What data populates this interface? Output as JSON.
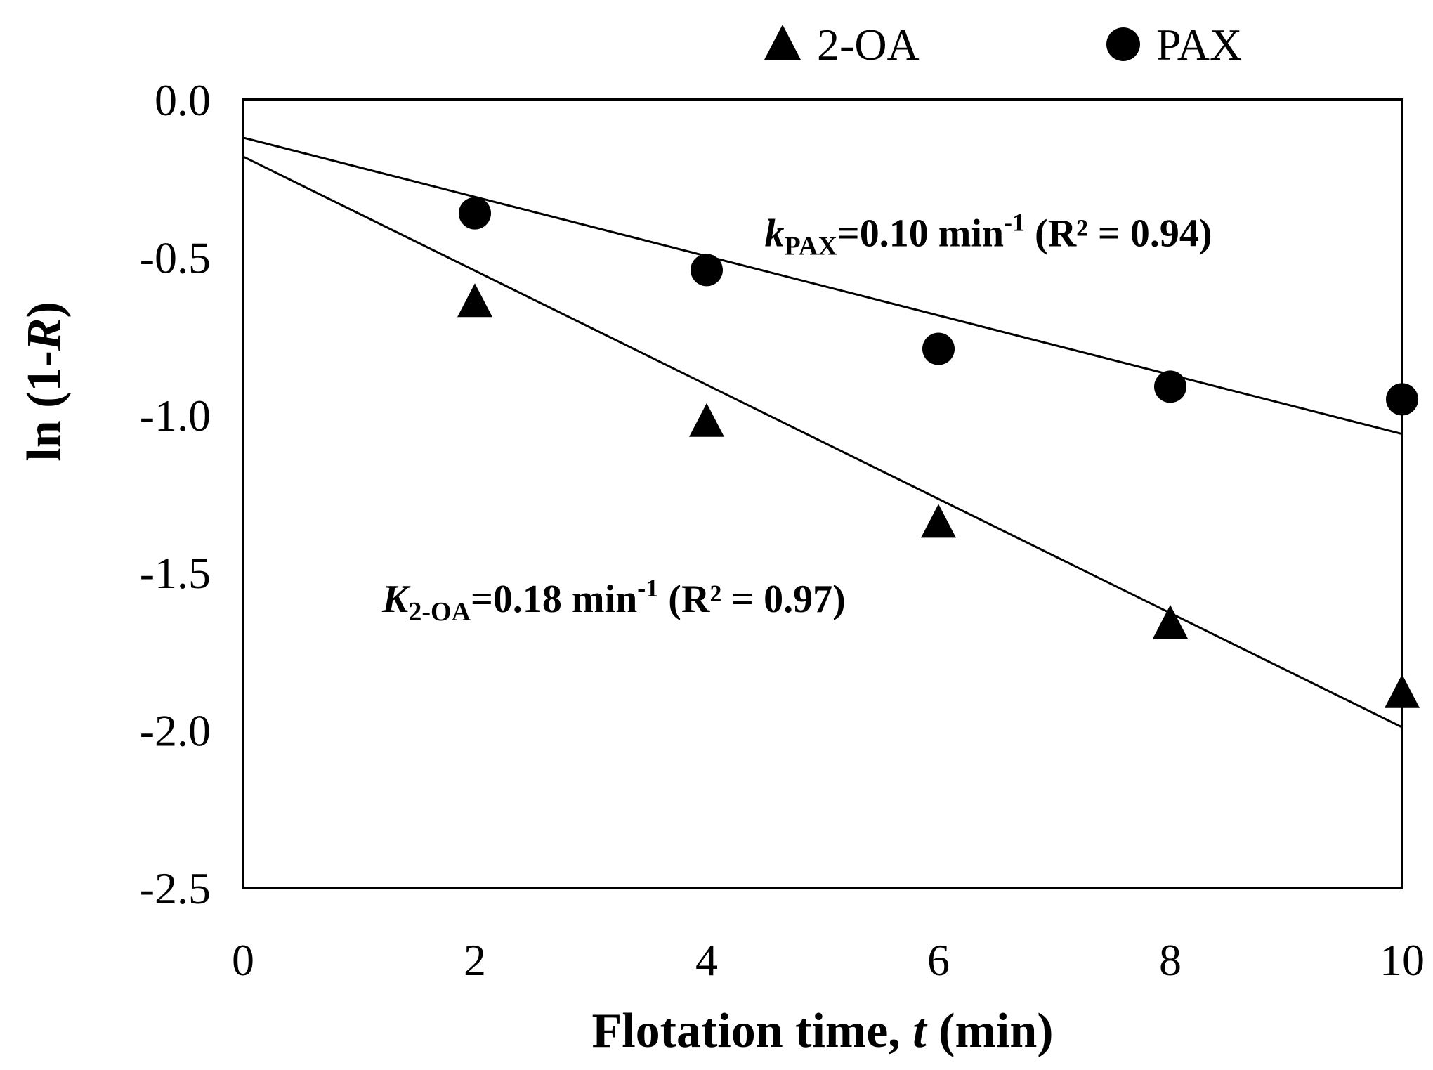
{
  "chart_data": {
    "type": "scatter",
    "xlabel": {
      "prefix": "Flotation time, ",
      "var": "t",
      "suffix": " (min)"
    },
    "ylabel": {
      "prefix": "ln (1-",
      "var": "R",
      "suffix": ")"
    },
    "xlim": [
      0,
      10
    ],
    "ylim": [
      -2.5,
      0
    ],
    "x_ticks": [
      "0",
      "2",
      "4",
      "6",
      "8",
      "10"
    ],
    "y_ticks": [
      "0.0",
      "-0.5",
      "-1.0",
      "-1.5",
      "-2.0",
      "-2.5"
    ],
    "grid": false,
    "legend_position": "top",
    "series": [
      {
        "name": "2-OA",
        "marker": "triangle",
        "color": "#000000",
        "x": [
          2,
          4,
          6,
          8,
          10
        ],
        "y": [
          -0.64,
          -1.02,
          -1.34,
          -1.66,
          -1.88
        ],
        "fit": {
          "x": [
            0,
            10
          ],
          "y": [
            -0.18,
            -1.99
          ]
        }
      },
      {
        "name": "PAX",
        "marker": "circle",
        "color": "#000000",
        "x": [
          2,
          4,
          6,
          8,
          10
        ],
        "y": [
          -0.36,
          -0.54,
          -0.79,
          -0.91,
          -0.95
        ],
        "fit": {
          "x": [
            0,
            10
          ],
          "y": [
            -0.12,
            -1.06
          ]
        }
      }
    ],
    "annotations": [
      {
        "id": "pax",
        "var": "k",
        "sub": "PAX",
        "text": "=0.10 min",
        "sup": "-1",
        "tail": " (R² = 0.94)",
        "x": 4.5,
        "y": -0.42
      },
      {
        "id": "oa",
        "var": "K",
        "sub": "2-OA",
        "text": "=0.18 min",
        "sup": "-1",
        "tail": " (R² = 0.97)",
        "x": 1.2,
        "y": -1.58
      }
    ]
  }
}
